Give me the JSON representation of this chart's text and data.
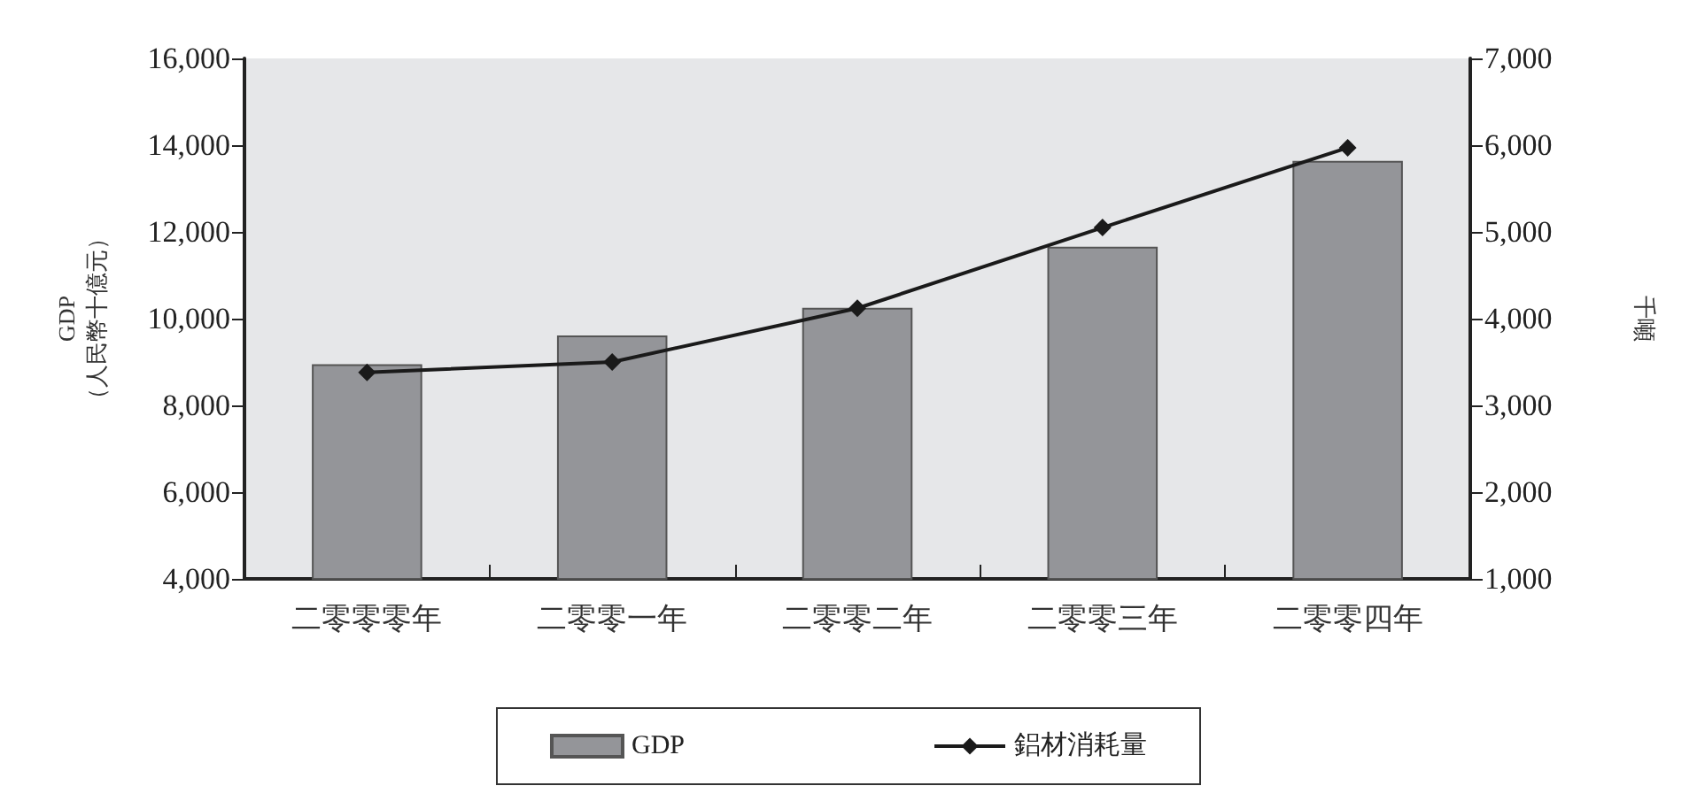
{
  "chart_data": {
    "type": "bar",
    "categories": [
      "二零零零年",
      "二零零一年",
      "二零零二年",
      "二零零三年",
      "二零零四年"
    ],
    "series": [
      {
        "name": "GDP",
        "color": "#949599",
        "values": [
          8950,
          9610,
          10250,
          11660,
          13640
        ]
      },
      {
        "name": "鋁材消耗量",
        "type": "line",
        "axis": "y2",
        "color": "#1a1a1a",
        "marker": "diamond",
        "values": [
          3380,
          3500,
          4120,
          5050,
          5970
        ]
      }
    ],
    "ylabel": "GDP\n（人民幣十億元）",
    "y2label": "千噸",
    "ylim": [
      4000,
      16000
    ],
    "yticks": [
      {
        "value": 4000,
        "label": "4,000"
      },
      {
        "value": 6000,
        "label": "6,000"
      },
      {
        "value": 8000,
        "label": "8,000"
      },
      {
        "value": 10000,
        "label": "10,000"
      },
      {
        "value": 12000,
        "label": "12,000"
      },
      {
        "value": 14000,
        "label": "14,000"
      },
      {
        "value": 16000,
        "label": "16,000"
      }
    ],
    "y2lim": [
      1000,
      7000
    ],
    "y2ticks": [
      {
        "value": 1000,
        "label": "1,000"
      },
      {
        "value": 2000,
        "label": "2,000"
      },
      {
        "value": 3000,
        "label": "3,000"
      },
      {
        "value": 4000,
        "label": "4,000"
      },
      {
        "value": 5000,
        "label": "5,000"
      },
      {
        "value": 6000,
        "label": "6,000"
      },
      {
        "value": 7000,
        "label": "7,000"
      }
    ],
    "grid": false,
    "legend": "bottom"
  }
}
